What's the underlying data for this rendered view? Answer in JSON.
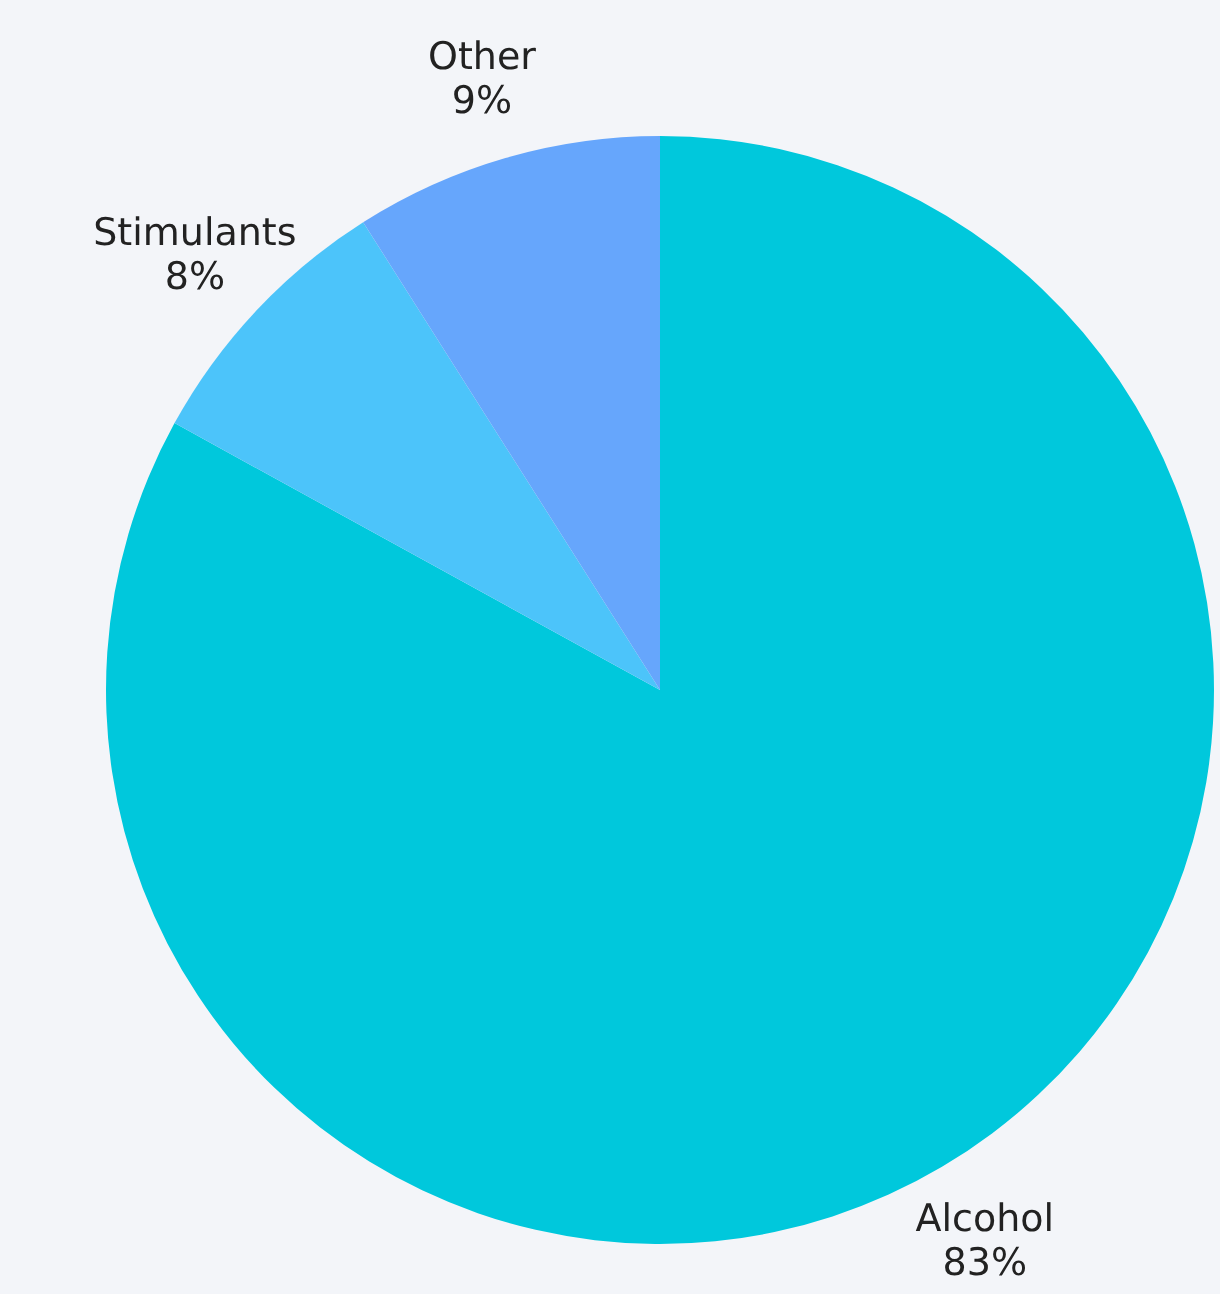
{
  "chart_data": {
    "type": "pie",
    "categories": [
      "Alcohol",
      "Stimulants",
      "Other"
    ],
    "values": [
      83,
      8,
      9
    ],
    "value_labels": [
      "83%",
      "8%",
      "9%"
    ],
    "colors": [
      "#00c8dc",
      "#4cc4fa",
      "#66a6fc"
    ],
    "legend": false
  }
}
